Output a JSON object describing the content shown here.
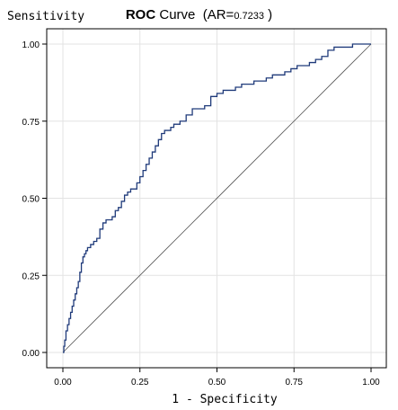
{
  "chart_data": {
    "type": "line",
    "title": {
      "prefix": "ROC",
      "word": "Curve",
      "metric_label": "(AR=",
      "metric_value": "0.7233",
      "close": ")"
    },
    "xlabel": "1 - Specificity",
    "ylabel": "Sensitivity",
    "xlim": [
      0,
      1
    ],
    "ylim": [
      0,
      1
    ],
    "grid": true,
    "x_ticks": [
      {
        "value": 0.0,
        "label": "0.00"
      },
      {
        "value": 0.25,
        "label": "0.25"
      },
      {
        "value": 0.5,
        "label": "0.50"
      },
      {
        "value": 0.75,
        "label": "0.75"
      },
      {
        "value": 1.0,
        "label": "1.00"
      }
    ],
    "y_ticks": [
      {
        "value": 0.0,
        "label": "0.00"
      },
      {
        "value": 0.25,
        "label": "0.25"
      },
      {
        "value": 0.5,
        "label": "0.50"
      },
      {
        "value": 0.75,
        "label": "0.75"
      },
      {
        "value": 1.0,
        "label": "1.00"
      }
    ],
    "colors": {
      "roc": "#1f3a7a",
      "reference": "#555555",
      "grid": "#e3e3e3"
    },
    "series": [
      {
        "x": [
          0.0,
          0.003,
          0.006,
          0.01,
          0.015,
          0.02,
          0.025,
          0.03,
          0.035,
          0.04,
          0.045,
          0.05,
          0.055,
          0.06,
          0.065,
          0.07,
          0.075,
          0.08,
          0.09,
          0.1,
          0.11,
          0.12,
          0.13,
          0.14,
          0.15,
          0.16,
          0.17,
          0.18,
          0.19,
          0.2,
          0.21,
          0.22,
          0.23,
          0.24,
          0.25,
          0.26,
          0.27,
          0.28,
          0.29,
          0.3,
          0.31,
          0.32,
          0.33,
          0.34,
          0.35,
          0.36,
          0.38,
          0.4,
          0.42,
          0.44,
          0.46,
          0.48,
          0.5,
          0.52,
          0.54,
          0.56,
          0.58,
          0.6,
          0.62,
          0.64,
          0.66,
          0.68,
          0.7,
          0.72,
          0.74,
          0.76,
          0.78,
          0.8,
          0.82,
          0.84,
          0.86,
          0.88,
          0.9,
          0.92,
          0.94,
          0.96,
          0.98,
          1.0
        ],
        "y": [
          0.0,
          0.02,
          0.04,
          0.07,
          0.09,
          0.11,
          0.13,
          0.15,
          0.17,
          0.19,
          0.21,
          0.23,
          0.26,
          0.29,
          0.31,
          0.32,
          0.33,
          0.34,
          0.35,
          0.36,
          0.37,
          0.4,
          0.42,
          0.43,
          0.43,
          0.44,
          0.46,
          0.47,
          0.49,
          0.51,
          0.52,
          0.53,
          0.53,
          0.55,
          0.57,
          0.59,
          0.61,
          0.63,
          0.65,
          0.67,
          0.69,
          0.71,
          0.72,
          0.72,
          0.73,
          0.74,
          0.75,
          0.77,
          0.79,
          0.79,
          0.8,
          0.83,
          0.84,
          0.85,
          0.85,
          0.86,
          0.87,
          0.87,
          0.88,
          0.88,
          0.89,
          0.9,
          0.9,
          0.91,
          0.92,
          0.93,
          0.93,
          0.94,
          0.95,
          0.96,
          0.98,
          0.99,
          0.99,
          0.99,
          1.0,
          1.0,
          1.0,
          1.0
        ]
      }
    ]
  }
}
